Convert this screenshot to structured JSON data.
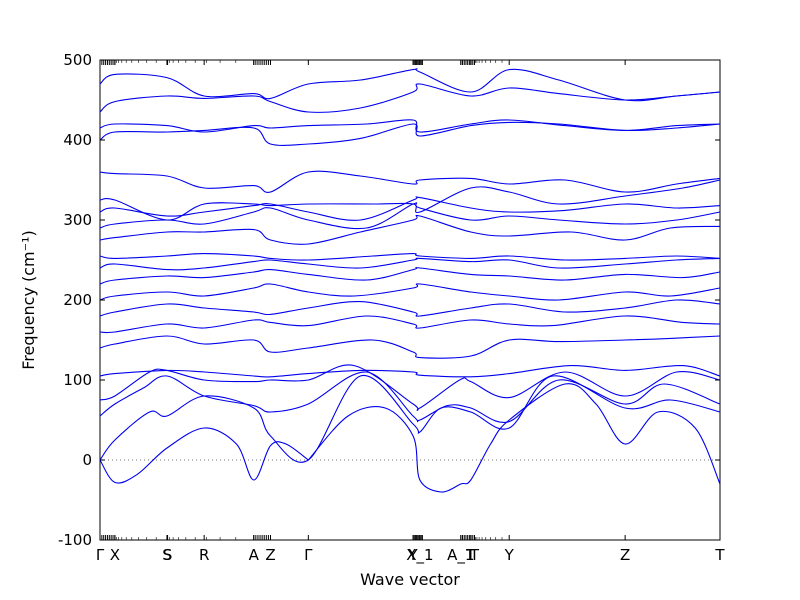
{
  "chart_data": {
    "type": "line",
    "title": "",
    "xlabel": "Wave vector",
    "ylabel": "Frequency (cm⁻¹)",
    "ylim": [
      -100,
      500
    ],
    "yticks": [
      -100,
      0,
      100,
      200,
      300,
      400,
      500
    ],
    "xlim": [
      0,
      10
    ],
    "xticks": [
      {
        "label": "Γ",
        "x": 0.0
      },
      {
        "label": "X",
        "x": 0.24
      },
      {
        "label": "S",
        "x": 1.08
      },
      {
        "label": "S",
        "x": 1.09
      },
      {
        "label": "R",
        "x": 1.68
      },
      {
        "label": "A",
        "x": 2.48
      },
      {
        "label": "Z",
        "x": 2.75
      },
      {
        "label": "Γ",
        "x": 3.36
      },
      {
        "label": "Y",
        "x": 5.05
      },
      {
        "label": "X_1",
        "x": 5.16
      },
      {
        "label": "A_1",
        "x": 5.82
      },
      {
        "label": "T",
        "x": 5.98
      },
      {
        "label": "T",
        "x": 6.04
      },
      {
        "label": "Y",
        "x": 6.6
      },
      {
        "label": "Z",
        "x": 8.47
      },
      {
        "label": "T",
        "x": 10.0
      }
    ],
    "reference_line": 0,
    "series": [
      {
        "x": [
          0,
          0.24,
          0.6,
          1.08,
          1.68,
          2.2,
          2.48,
          2.75,
          3.0,
          3.36
        ],
        "y": [
          0,
          -28,
          -18,
          15,
          40,
          20,
          -25,
          18,
          20,
          0
        ]
      },
      {
        "x": [
          3.36,
          4.0,
          4.6,
          5.05,
          5.16,
          5.5,
          5.82,
          5.98,
          6.3,
          6.6,
          7.5,
          8.0,
          8.47,
          9.0,
          9.6,
          10.0
        ],
        "y": [
          0,
          55,
          65,
          30,
          -25,
          -40,
          -30,
          -25,
          20,
          50,
          95,
          70,
          20,
          60,
          40,
          -30
        ]
      },
      {
        "x": [
          0,
          0.24,
          0.8,
          1.08,
          1.68,
          2.48,
          2.75,
          3.36,
          4.2,
          5.05,
          5.16,
          5.5,
          5.98,
          6.6,
          7.3,
          8.47,
          9.2,
          10.0
        ],
        "y": [
          0,
          25,
          60,
          55,
          80,
          65,
          30,
          0,
          105,
          45,
          35,
          65,
          60,
          40,
          105,
          65,
          75,
          60
        ]
      },
      {
        "x": [
          0,
          0.24,
          0.7,
          1.08,
          1.68,
          2.48,
          2.75,
          3.36,
          4.3,
          5.05,
          5.16,
          5.6,
          5.98,
          6.6,
          7.4,
          8.47,
          9.1,
          10.0
        ],
        "y": [
          55,
          70,
          90,
          105,
          80,
          68,
          60,
          70,
          110,
          55,
          50,
          68,
          65,
          48,
          100,
          70,
          95,
          70
        ]
      },
      {
        "x": [
          0,
          0.24,
          0.8,
          1.08,
          1.68,
          2.48,
          2.75,
          3.36,
          4.1,
          5.05,
          5.16,
          5.8,
          5.98,
          6.6,
          7.5,
          8.47,
          9.3,
          10.0
        ],
        "y": [
          75,
          80,
          110,
          112,
          100,
          98,
          100,
          100,
          118,
          70,
          65,
          100,
          98,
          78,
          110,
          80,
          110,
          100
        ]
      },
      {
        "x": [
          0,
          0.24,
          1.08,
          1.68,
          2.48,
          2.75,
          3.36,
          4.2,
          5.05,
          5.16,
          5.98,
          6.6,
          7.6,
          8.47,
          9.4,
          10.0
        ],
        "y": [
          105,
          108,
          112,
          110,
          105,
          104,
          108,
          112,
          110,
          106,
          104,
          108,
          118,
          112,
          118,
          105
        ]
      },
      {
        "x": [
          0,
          0.24,
          1.08,
          1.68,
          2.48,
          2.75,
          3.36,
          4.4,
          5.05,
          5.16,
          5.98,
          6.6,
          7.4,
          8.47,
          9.2,
          10.0
        ],
        "y": [
          140,
          145,
          155,
          145,
          150,
          135,
          140,
          150,
          135,
          128,
          130,
          150,
          148,
          150,
          152,
          155
        ]
      },
      {
        "x": [
          0,
          0.24,
          1.08,
          1.68,
          2.48,
          2.75,
          3.36,
          4.3,
          5.05,
          5.16,
          5.98,
          6.6,
          7.3,
          8.47,
          9.4,
          10.0
        ],
        "y": [
          160,
          160,
          170,
          165,
          175,
          172,
          168,
          180,
          170,
          165,
          175,
          170,
          168,
          180,
          172,
          170
        ]
      },
      {
        "x": [
          0,
          0.24,
          1.08,
          1.68,
          2.48,
          2.75,
          3.36,
          4.2,
          5.05,
          5.16,
          5.98,
          6.6,
          7.5,
          8.47,
          9.3,
          10.0
        ],
        "y": [
          180,
          185,
          195,
          190,
          185,
          182,
          190,
          198,
          185,
          180,
          190,
          195,
          185,
          190,
          200,
          195
        ]
      },
      {
        "x": [
          0,
          0.24,
          1.08,
          1.68,
          2.48,
          2.75,
          3.36,
          4.1,
          5.05,
          5.16,
          5.98,
          6.6,
          7.4,
          8.47,
          9.2,
          10.0
        ],
        "y": [
          200,
          205,
          210,
          205,
          215,
          220,
          210,
          205,
          215,
          220,
          210,
          205,
          200,
          210,
          205,
          215
        ]
      },
      {
        "x": [
          0,
          0.24,
          1.08,
          1.68,
          2.48,
          2.75,
          3.36,
          4.3,
          5.05,
          5.16,
          5.98,
          6.6,
          7.5,
          8.47,
          9.4,
          10.0
        ],
        "y": [
          220,
          225,
          230,
          228,
          235,
          238,
          232,
          225,
          238,
          240,
          232,
          230,
          225,
          232,
          228,
          235
        ]
      },
      {
        "x": [
          0,
          0.24,
          1.08,
          1.68,
          2.48,
          2.75,
          3.36,
          4.2,
          5.05,
          5.16,
          5.98,
          6.6,
          7.4,
          8.47,
          9.3,
          10.0
        ],
        "y": [
          240,
          245,
          238,
          240,
          248,
          250,
          245,
          240,
          250,
          252,
          248,
          250,
          240,
          245,
          250,
          252
        ]
      },
      {
        "x": [
          0,
          0.24,
          1.08,
          1.68,
          2.48,
          2.75,
          3.36,
          4.4,
          5.05,
          5.16,
          5.98,
          6.6,
          7.5,
          8.47,
          9.3,
          10.0
        ],
        "y": [
          255,
          252,
          255,
          258,
          255,
          252,
          250,
          255,
          258,
          255,
          252,
          255,
          250,
          252,
          255,
          252
        ]
      },
      {
        "x": [
          0,
          0.24,
          1.08,
          1.68,
          2.48,
          2.75,
          3.36,
          4.2,
          5.05,
          5.16,
          5.98,
          6.6,
          7.6,
          8.47,
          9.2,
          10.0
        ],
        "y": [
          275,
          278,
          285,
          285,
          288,
          275,
          270,
          285,
          300,
          305,
          285,
          280,
          285,
          275,
          290,
          292
        ]
      },
      {
        "x": [
          0,
          0.24,
          1.08,
          1.68,
          2.48,
          2.75,
          3.36,
          4.3,
          5.05,
          5.16,
          5.98,
          6.6,
          7.4,
          8.47,
          9.3,
          10.0
        ],
        "y": [
          290,
          295,
          300,
          295,
          310,
          315,
          300,
          290,
          320,
          315,
          300,
          305,
          300,
          295,
          300,
          310
        ]
      },
      {
        "x": [
          0,
          0.24,
          1.08,
          1.68,
          2.48,
          2.75,
          3.36,
          4.2,
          5.05,
          5.16,
          5.98,
          6.6,
          7.5,
          8.47,
          9.3,
          10.0
        ],
        "y": [
          310,
          315,
          305,
          310,
          318,
          320,
          310,
          300,
          325,
          328,
          315,
          310,
          312,
          320,
          315,
          318
        ]
      },
      {
        "x": [
          0,
          0.24,
          1.08,
          1.68,
          2.48,
          2.75,
          3.36,
          4.4,
          5.05,
          5.16,
          5.98,
          6.6,
          7.4,
          8.47,
          9.4,
          10.0
        ],
        "y": [
          325,
          325,
          300,
          320,
          320,
          318,
          320,
          320,
          320,
          310,
          340,
          335,
          320,
          330,
          340,
          350
        ]
      },
      {
        "x": [
          0,
          0.24,
          1.08,
          1.68,
          2.48,
          2.75,
          3.36,
          4.2,
          5.05,
          5.16,
          5.98,
          6.6,
          7.5,
          8.47,
          9.3,
          10.0
        ],
        "y": [
          360,
          358,
          355,
          340,
          343,
          335,
          360,
          355,
          345,
          350,
          352,
          345,
          350,
          335,
          345,
          352
        ]
      },
      {
        "x": [
          0,
          0.24,
          1.08,
          1.68,
          2.48,
          2.75,
          3.36,
          4.2,
          5.05,
          5.16,
          5.98,
          6.6,
          7.4,
          8.47,
          9.3,
          10.0
        ],
        "y": [
          400,
          410,
          410,
          412,
          415,
          395,
          395,
          402,
          420,
          405,
          418,
          422,
          420,
          412,
          415,
          420
        ]
      },
      {
        "x": [
          0,
          0.24,
          1.08,
          1.68,
          2.48,
          2.75,
          3.36,
          4.3,
          5.05,
          5.16,
          5.98,
          6.6,
          7.5,
          8.47,
          9.3,
          10.0
        ],
        "y": [
          415,
          420,
          418,
          410,
          418,
          415,
          418,
          420,
          425,
          410,
          420,
          425,
          418,
          412,
          418,
          420
        ]
      },
      {
        "x": [
          0,
          0.24,
          1.08,
          1.68,
          2.48,
          2.75,
          3.36,
          4.2,
          5.05,
          5.16,
          5.98,
          6.6,
          7.4,
          8.47,
          9.3,
          10.0
        ],
        "y": [
          435,
          448,
          455,
          452,
          455,
          448,
          435,
          440,
          460,
          470,
          455,
          465,
          458,
          450,
          455,
          460
        ]
      },
      {
        "x": [
          0,
          0.24,
          1.08,
          1.68,
          2.48,
          2.75,
          3.36,
          4.2,
          5.05,
          5.16,
          5.98,
          6.6,
          7.4,
          8.47,
          9.3,
          10.0
        ],
        "y": [
          470,
          482,
          478,
          455,
          458,
          452,
          470,
          475,
          488,
          485,
          460,
          488,
          475,
          450,
          455,
          460
        ]
      }
    ]
  }
}
